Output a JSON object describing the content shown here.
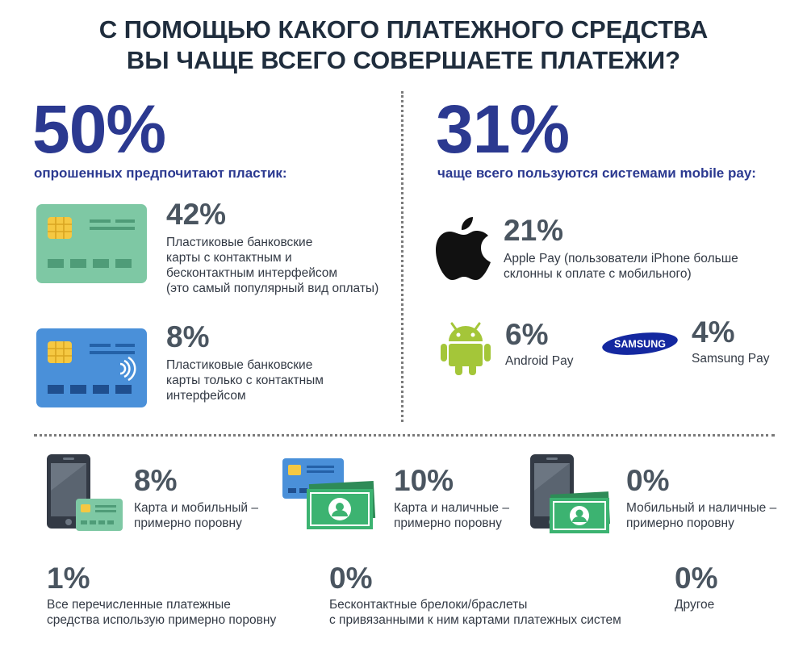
{
  "title": {
    "line1": "С ПОМОЩЬЮ КАКОГО ПЛАТЕЖНОГО СРЕДСТВА",
    "line2": "ВЫ ЧАЩЕ ВСЕГО СОВЕРШАЕТЕ ПЛАТЕЖИ?"
  },
  "left": {
    "big": "50%",
    "lead": "опрошенных предпочитают пластик:",
    "items": [
      {
        "pct": "42%",
        "l1": "Пластиковые банковские",
        "l2": "карты с контактным и",
        "l3": "бесконтактным интерфейсом",
        "l4": "(это самый популярный вид оплаты)"
      },
      {
        "pct": "8%",
        "l1": "Пластиковые банковские",
        "l2": "карты только с контактным",
        "l3": "интерфейсом"
      }
    ]
  },
  "right": {
    "big": "31%",
    "lead": "чаще всего пользуются системами mobile pay:",
    "apple": {
      "pct": "21%",
      "l1": "Apple Pay (пользователи iPhone больше",
      "l2": "склонны к оплате с мобильного)"
    },
    "android": {
      "pct": "6%",
      "label": "Android Pay"
    },
    "samsung": {
      "pct": "4%",
      "label": "Samsung Pay",
      "logo_text": "SAMSUNG"
    }
  },
  "bottom": {
    "combos": [
      {
        "pct": "8%",
        "l1": "Карта и мобильный –",
        "l2": "примерно поровну"
      },
      {
        "pct": "10%",
        "l1": "Карта и наличные –",
        "l2": "примерно поровну"
      },
      {
        "pct": "0%",
        "l1": "Мобильный и наличные –",
        "l2": "примерно поровну"
      }
    ],
    "others": [
      {
        "pct": "1%",
        "l1": "Все перечисленные платежные",
        "l2": "средства использую примерно поровну"
      },
      {
        "pct": "0%",
        "l1": "Бесконтактные брелоки/браслеты",
        "l2": "с привязанными к ним картами платежных систем"
      },
      {
        "pct": "0%",
        "l1": "Другое"
      }
    ]
  },
  "colors": {
    "accent": "#2b3990",
    "card_green": "#7ec8a4",
    "card_blue": "#4a90d9",
    "chip": "#f5c842",
    "cash_green": "#3cb371",
    "android_green": "#a4c639",
    "samsung_blue": "#1428a0"
  },
  "icons": [
    "credit-card-green-icon",
    "credit-card-contactless-icon",
    "apple-logo-icon",
    "android-robot-icon",
    "samsung-logo-icon",
    "smartphone-icon",
    "cash-icon"
  ]
}
